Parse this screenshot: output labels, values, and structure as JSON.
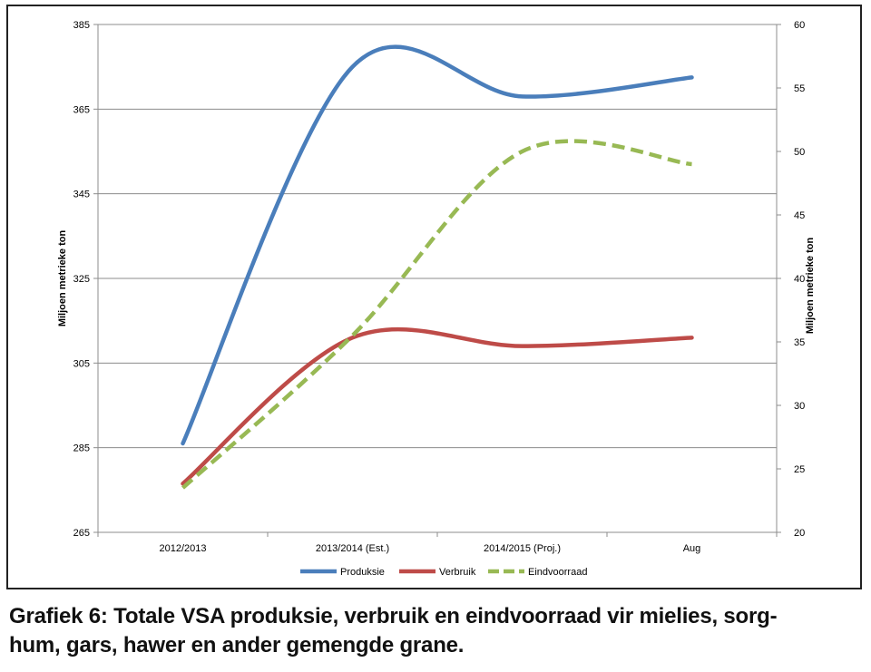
{
  "caption": "Grafiek 6: Totale VSA produksie, verbruik en eindvoorraad vir mielies, sorghum, gars, hawer en ander gemengde grane.",
  "caption_lines": [
    "Grafiek 6: Totale VSA produksie, verbruik en eindvoorraad vir mielies, sorg-",
    "hum, gars, hawer en ander gemengde grane."
  ],
  "chart_data": {
    "type": "line",
    "categories": [
      "2012/2013",
      "2013/2014 (Est.)",
      "2014/2015 (Proj.)",
      "Aug"
    ],
    "ylabel": "Miljoen metrieke ton",
    "y2label": "Miljoen metrieke ton",
    "ylim": [
      265,
      385
    ],
    "yticks": [
      265,
      285,
      305,
      325,
      345,
      365,
      385
    ],
    "y2lim": [
      20,
      60
    ],
    "y2ticks": [
      20,
      25,
      30,
      35,
      40,
      45,
      50,
      55,
      60
    ],
    "grid": true,
    "legend_position": "bottom",
    "series": [
      {
        "name": "Produksie",
        "axis": "left",
        "values": [
          286,
          375,
          368,
          372.5
        ],
        "color": "#4a7ebb",
        "dash": false
      },
      {
        "name": "Verbruik",
        "axis": "left",
        "values": [
          276.5,
          311,
          309,
          311
        ],
        "color": "#be4b48",
        "dash": false
      },
      {
        "name": "Eindvoorraad",
        "axis": "right",
        "values": [
          23.5,
          35.5,
          50,
          49
        ],
        "color": "#98b954",
        "dash": true
      }
    ]
  }
}
